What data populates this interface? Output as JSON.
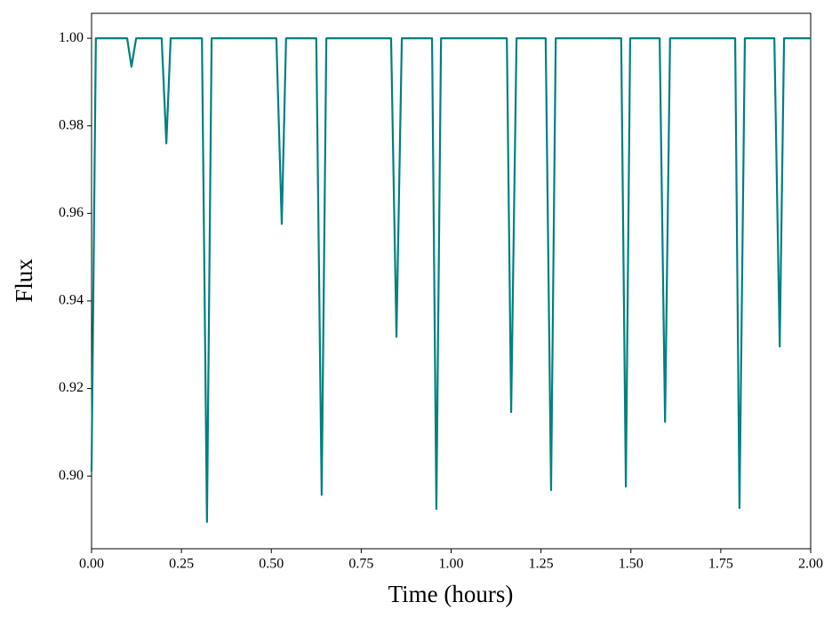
{
  "chart_data": {
    "type": "line",
    "xlabel": "Time (hours)",
    "ylabel": "Flux",
    "x": [
      0,
      0.012,
      0.099,
      0.111,
      0.124,
      0.195,
      0.208,
      0.22,
      0.307,
      0.321,
      0.334,
      0.514,
      0.529,
      0.541,
      0.625,
      0.64,
      0.653,
      0.833,
      0.848,
      0.863,
      0.947,
      0.959,
      0.972,
      1.155,
      1.167,
      1.182,
      1.263,
      1.278,
      1.291,
      1.473,
      1.486,
      1.498,
      1.58,
      1.595,
      1.609,
      1.79,
      1.802,
      1.817,
      1.899,
      1.914,
      1.926,
      2.0
    ],
    "series": [
      {
        "name": "Flux",
        "color": "#008080",
        "values": [
          0.901,
          1.0,
          1.0,
          0.9935,
          1.0,
          1.0,
          0.976,
          1.0,
          1.0,
          0.8895,
          1.0,
          1.0,
          0.9576,
          1.0,
          1.0,
          0.8957,
          1.0,
          1.0,
          0.9318,
          1.0,
          1.0,
          0.8925,
          1.0,
          1.0,
          0.9146,
          1.0,
          1.0,
          0.8968,
          1.0,
          1.0,
          0.8976,
          1.0,
          1.0,
          0.9124,
          1.0,
          1.0,
          0.8927,
          1.0,
          1.0,
          0.9296,
          1.0,
          1.0
        ]
      }
    ],
    "xlim": [
      0,
      2.0
    ],
    "ylim": [
      0.8834,
      1.0057
    ],
    "xticks": [
      {
        "value": 0,
        "label": "0.00"
      },
      0.25,
      {
        "value": 0.5,
        "label": "0.50"
      },
      0.75,
      {
        "value": 1,
        "label": "1.00"
      },
      1.25,
      {
        "value": 1.5,
        "label": "1.50"
      },
      1.75,
      {
        "value": 2,
        "label": "2.00"
      }
    ],
    "yticks": [
      {
        "value": 0.9,
        "label": "0.90"
      },
      0.92,
      0.94,
      0.96,
      0.98,
      {
        "value": 1,
        "label": "1.00"
      }
    ],
    "grid": false
  }
}
